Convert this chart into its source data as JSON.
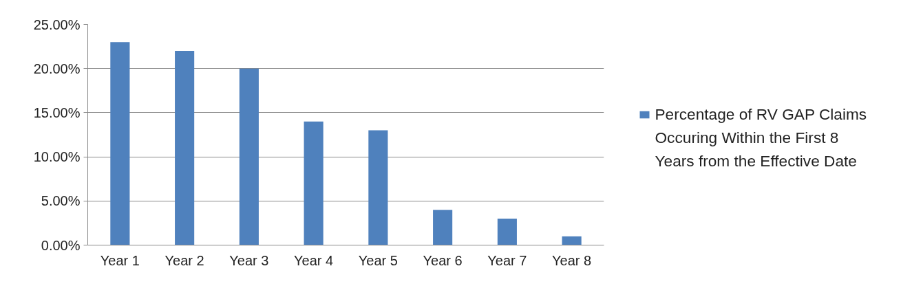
{
  "chart_data": {
    "type": "bar",
    "categories": [
      "Year 1",
      "Year 2",
      "Year 3",
      "Year 4",
      "Year 5",
      "Year 6",
      "Year 7",
      "Year 8"
    ],
    "series": [
      {
        "name": "Percentage of RV GAP Claims Occuring Within the First 8 Years from the Effective Date",
        "color": "#4f81bd",
        "values": [
          23,
          22,
          20,
          14,
          13,
          4,
          3,
          1
        ]
      }
    ],
    "ylim": [
      0,
      25
    ],
    "yticks": [
      {
        "value": 0,
        "label": "0.00%"
      },
      {
        "value": 5,
        "label": "5.00%"
      },
      {
        "value": 10,
        "label": "10.00%"
      },
      {
        "value": 15,
        "label": "15.00%"
      },
      {
        "value": 20,
        "label": "20.00%"
      },
      {
        "value": 25,
        "label": "25.00%"
      }
    ],
    "grid": "y",
    "legend": "right"
  }
}
